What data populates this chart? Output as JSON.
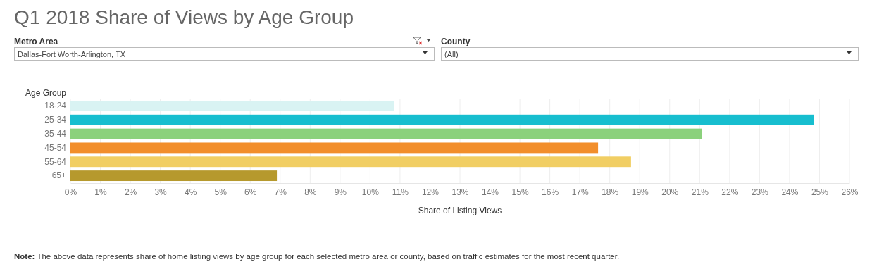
{
  "chart_data": {
    "type": "bar",
    "orientation": "horizontal",
    "title": "Q1 2018 Share of Views by Age Group",
    "xlabel": "Share of Listing Views",
    "ylabel": "Age Group",
    "categories": [
      "18-24",
      "25-34",
      "35-44",
      "45-54",
      "55-64",
      "65+"
    ],
    "values": [
      10.81,
      24.82,
      21.08,
      17.61,
      18.71,
      6.89
    ],
    "colors": [
      "#d9f3f3",
      "#17becf",
      "#8bd17c",
      "#f28e2b",
      "#f1ce63",
      "#b6992d"
    ],
    "xlim": [
      0,
      26
    ],
    "xticks": [
      {
        "value": 0,
        "label": "0%"
      },
      {
        "value": 1,
        "label": "1%"
      },
      {
        "value": 2,
        "label": "2%"
      },
      {
        "value": 3,
        "label": "3%"
      },
      {
        "value": 4,
        "label": "4%"
      },
      {
        "value": 5,
        "label": "5%"
      },
      {
        "value": 6,
        "label": "6%"
      },
      {
        "value": 7,
        "label": "7%"
      },
      {
        "value": 8,
        "label": "8%"
      },
      {
        "value": 9,
        "label": "9%"
      },
      {
        "value": 10,
        "label": "10%"
      },
      {
        "value": 11,
        "label": "11%"
      },
      {
        "value": 12,
        "label": "12%"
      },
      {
        "value": 13,
        "label": "13%"
      },
      {
        "value": 14,
        "label": "14%"
      },
      {
        "value": 15,
        "label": "15%"
      },
      {
        "value": 16,
        "label": "16%"
      },
      {
        "value": 17,
        "label": "17%"
      },
      {
        "value": 18,
        "label": "18%"
      },
      {
        "value": 19,
        "label": "19%"
      },
      {
        "value": 20,
        "label": "20%"
      },
      {
        "value": 21,
        "label": "21%"
      },
      {
        "value": 22,
        "label": "22%"
      },
      {
        "value": 23,
        "label": "23%"
      },
      {
        "value": 24,
        "label": "24%"
      },
      {
        "value": 25,
        "label": "25%"
      },
      {
        "value": 26,
        "label": "26%"
      }
    ],
    "grid": "x",
    "annotations": [
      "Metro Area",
      "Dallas-Fort Worth-Arlington, TX",
      "County",
      "(All)",
      "Note:",
      "The above data represents share of home listing views by age group for each selected metro area or county, based on traffic estimates for the most recent quarter."
    ]
  }
}
